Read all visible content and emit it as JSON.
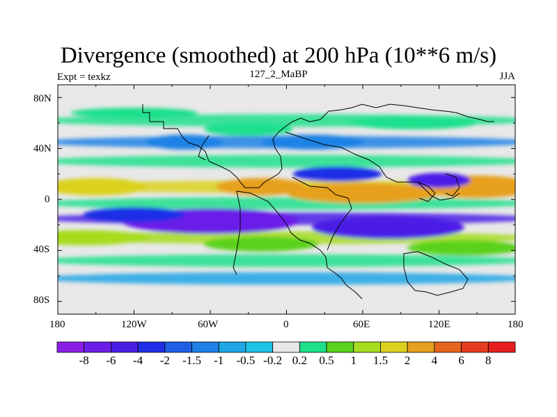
{
  "title": "Divergence (smoothed) at 200 hPa (10**6 m/s)",
  "left_label": "Expt = texkz",
  "center_label": "127_2_MaBP",
  "right_label": "JJA",
  "lat_ticks": [
    "80N",
    "40N",
    "0",
    "40S",
    "80S"
  ],
  "lon_ticks": [
    "180",
    "120W",
    "60W",
    "0",
    "60E",
    "120E",
    "180"
  ],
  "colorbar_labels": [
    "-8",
    "-6",
    "-4",
    "-2",
    "-1.5",
    "-1",
    "-0.5",
    "-0.2",
    "0.2",
    "0.5",
    "1",
    "1.5",
    "2",
    "4",
    "6",
    "8"
  ],
  "colorbar_colors": [
    "#8b1ee6",
    "#6b1ee8",
    "#4b1ee6",
    "#1e2ee6",
    "#1e5fe6",
    "#1e82e6",
    "#1ea6e6",
    "#1ec4e6",
    "#e8e8e8",
    "#1ee08c",
    "#5ad21e",
    "#a6dc1e",
    "#dcd21e",
    "#e6a01e",
    "#e6641e",
    "#e63c1e",
    "#e61e1e"
  ],
  "chart_data": {
    "type": "heatmap",
    "variable": "Divergence (smoothed)",
    "level": "200 hPa",
    "units": "10**6 m/s",
    "season": "JJA",
    "experiment": "texkz",
    "run": "127_2_MaBP",
    "x_range": [
      -180,
      180
    ],
    "y_range": [
      -90,
      90
    ],
    "levels": [
      -8,
      -6,
      -4,
      -2,
      -1.5,
      -1,
      -0.5,
      -0.2,
      0.2,
      0.5,
      1,
      1.5,
      2,
      4,
      6,
      8
    ],
    "zones": [
      {
        "lat": 62,
        "value": 0.5
      },
      {
        "lat": 45,
        "value": -1
      },
      {
        "lat": 30,
        "value": 0.5
      },
      {
        "lat": 10,
        "value": 2
      },
      {
        "lat": -3,
        "value": 0.5
      },
      {
        "lat": -15,
        "value": -4
      },
      {
        "lat": -30,
        "value": 1.5
      },
      {
        "lat": -48,
        "value": 0.5
      },
      {
        "lat": -62,
        "value": -0.5
      }
    ]
  }
}
